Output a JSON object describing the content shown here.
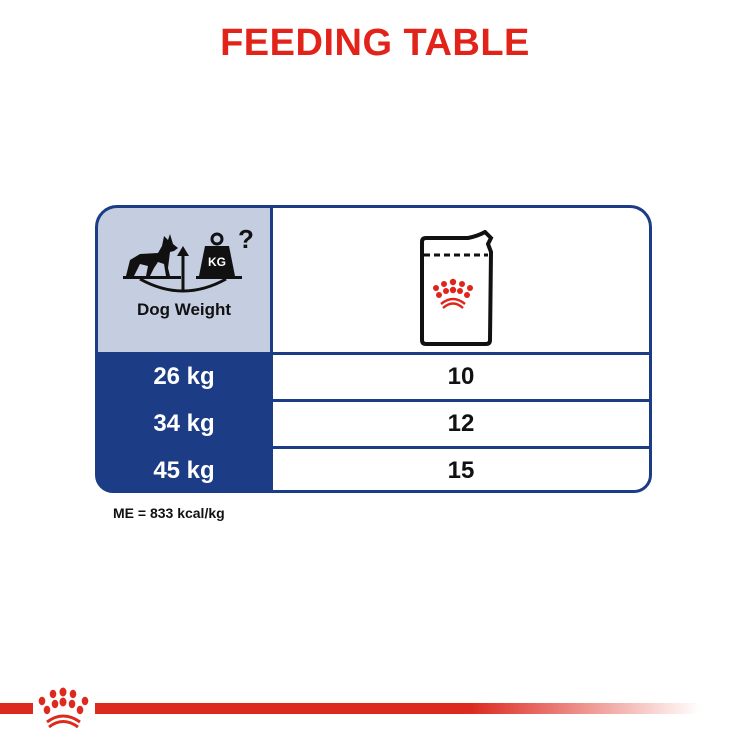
{
  "title": "FEEDING TABLE",
  "table": {
    "header_label": "Dog Weight",
    "rows": [
      {
        "weight": "26 kg",
        "amount": "10"
      },
      {
        "weight": "34 kg",
        "amount": "12"
      },
      {
        "weight": "45 kg",
        "amount": "15"
      }
    ]
  },
  "note": "ME = 833 kcal/kg",
  "icons": {
    "weight": "dog-scale-kg-icon",
    "product": "pouch-icon",
    "brand": "crown-logo"
  },
  "colors": {
    "brand_red": "#e2231a",
    "table_blue": "#1c3d86",
    "header_bg": "#c5cde0"
  }
}
